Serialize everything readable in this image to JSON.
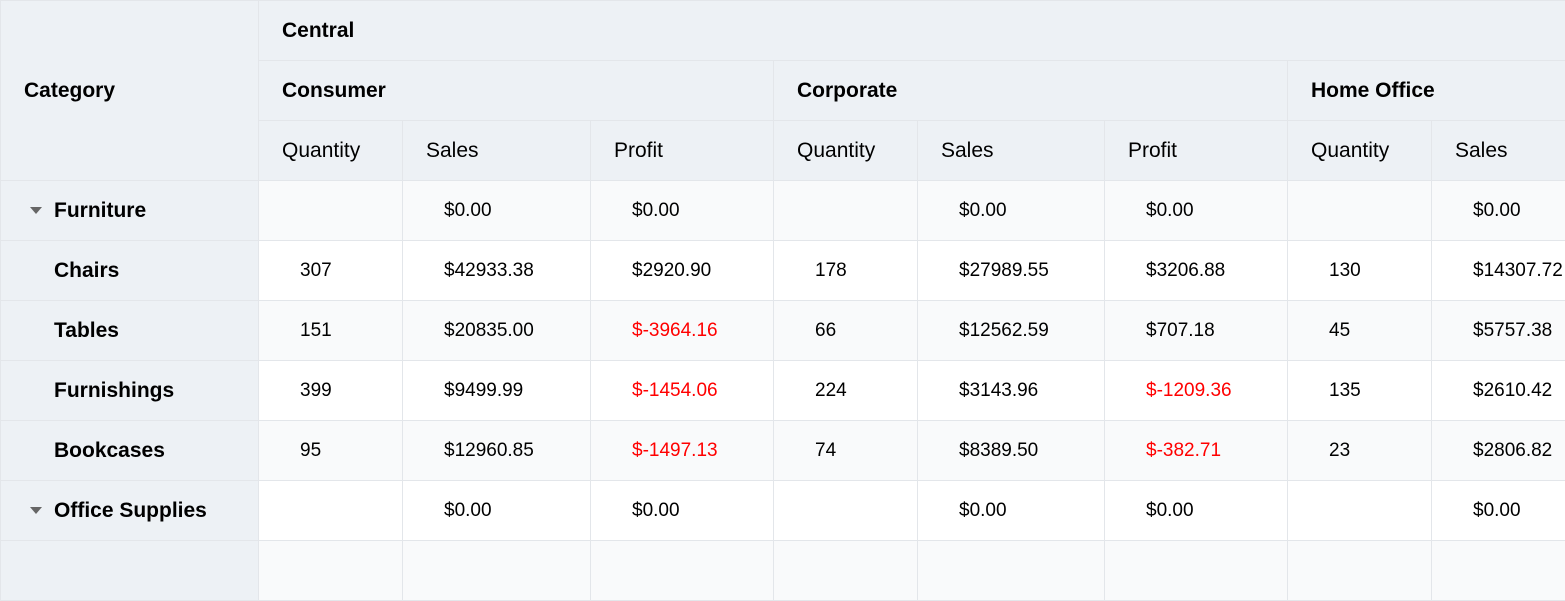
{
  "header": {
    "row_label": "Category",
    "region": "Central",
    "segments": [
      "Consumer",
      "Corporate",
      "Home Office"
    ],
    "measures": [
      "Quantity",
      "Sales",
      "Profit",
      "Quantity",
      "Sales",
      "Profit",
      "Quantity",
      "Sales"
    ]
  },
  "colors": {
    "negative": "#ff0000",
    "header_bg": "#edf1f5"
  },
  "rows": [
    {
      "label": "Furniture",
      "group": true,
      "cells": [
        "",
        "$0.00",
        "$0.00",
        "",
        "$0.00",
        "$0.00",
        "",
        "$0.00"
      ]
    },
    {
      "label": "Chairs",
      "cells": [
        "307",
        "$42933.38",
        "$2920.90",
        "178",
        "$27989.55",
        "$3206.88",
        "130",
        "$14307.72"
      ]
    },
    {
      "label": "Tables",
      "cells": [
        "151",
        "$20835.00",
        "$-3964.16",
        "66",
        "$12562.59",
        "$707.18",
        "45",
        "$5757.38"
      ]
    },
    {
      "label": "Furnishings",
      "cells": [
        "399",
        "$9499.99",
        "$-1454.06",
        "224",
        "$3143.96",
        "$-1209.36",
        "135",
        "$2610.42"
      ]
    },
    {
      "label": "Bookcases",
      "cells": [
        "95",
        "$12960.85",
        "$-1497.13",
        "74",
        "$8389.50",
        "$-382.71",
        "23",
        "$2806.82"
      ]
    },
    {
      "label": "Office Supplies",
      "group": true,
      "cells": [
        "",
        "$0.00",
        "$0.00",
        "",
        "$0.00",
        "$0.00",
        "",
        "$0.00"
      ]
    },
    {
      "label": "",
      "cells": [
        "",
        "",
        "",
        "",
        "",
        "",
        "",
        ""
      ]
    }
  ]
}
